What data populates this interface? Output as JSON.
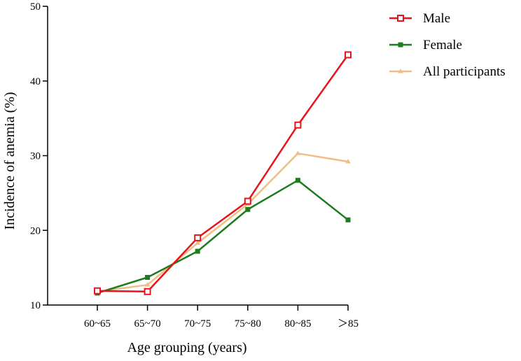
{
  "chart_data": {
    "type": "line",
    "title": "",
    "xlabel": "Age grouping (years)",
    "ylabel": "Incidence of anemia (%)",
    "categories": [
      "60~65",
      "65~70",
      "70~75",
      "75~80",
      "80~85",
      "＞85"
    ],
    "ylim": [
      10,
      50
    ],
    "yticks": [
      10,
      20,
      30,
      40,
      50
    ],
    "grid": false,
    "legend_position": "top-right",
    "series": [
      {
        "name": "Male",
        "color": "#e8131b",
        "marker": "square-open",
        "values": [
          11.9,
          11.8,
          19.0,
          23.9,
          34.1,
          43.5
        ]
      },
      {
        "name": "Female",
        "color": "#1e7c1e",
        "marker": "square-small",
        "values": [
          11.6,
          13.7,
          17.2,
          22.8,
          26.7,
          21.4
        ]
      },
      {
        "name": "All participants",
        "color": "#f2bd82",
        "marker": "triangle",
        "values": [
          11.8,
          12.7,
          18.3,
          23.5,
          30.3,
          29.2
        ]
      }
    ]
  }
}
